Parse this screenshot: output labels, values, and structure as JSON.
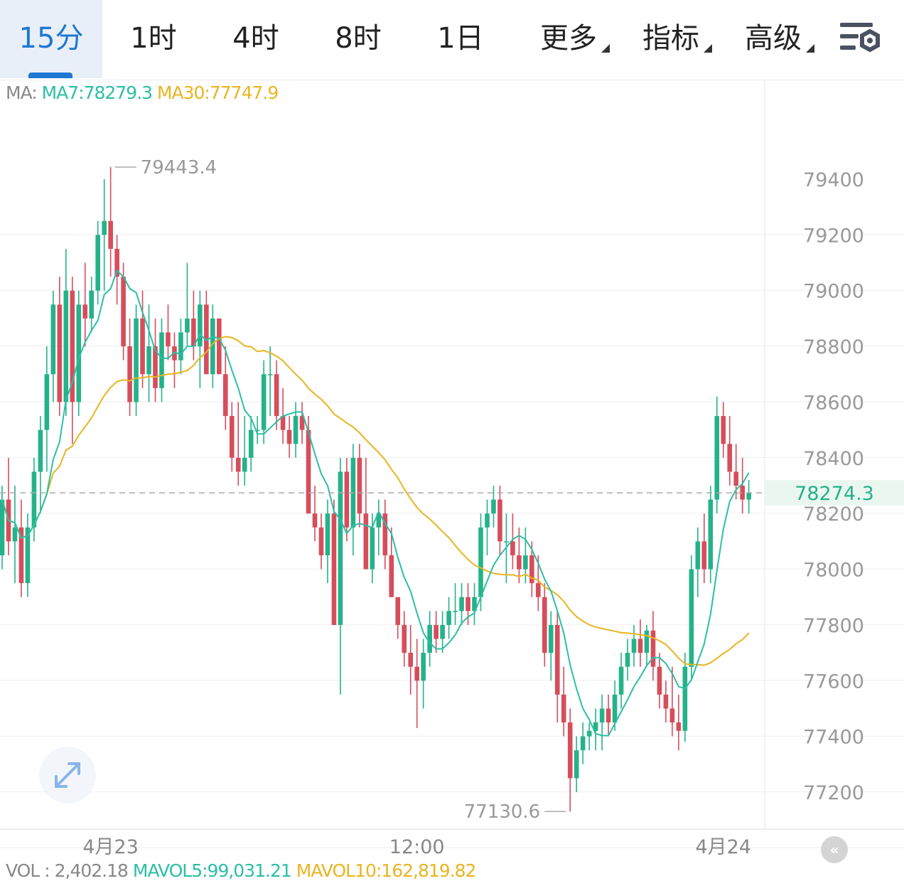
{
  "tabs": [
    {
      "label": "15分",
      "active": true
    },
    {
      "label": "1时"
    },
    {
      "label": "4时"
    },
    {
      "label": "8时"
    },
    {
      "label": "1日"
    },
    {
      "label": "更多",
      "dropdown": true
    },
    {
      "label": "指标",
      "dropdown": true
    },
    {
      "label": "高级",
      "dropdown": true
    }
  ],
  "ma_legend": {
    "prefix": "MA:",
    "ma7": "MA7:78279.3",
    "ma30": "MA30:77747.9"
  },
  "vol_legend": {
    "vol": "VOL : 2,402.18",
    "mavol5": "MAVOL5:99,031.21",
    "mavol10": "MAVOL10:162,819.82"
  },
  "colors": {
    "up": "#25b28a",
    "down": "#d64d5c",
    "ma7": "#2bbfa6",
    "ma30": "#e9b520",
    "accent": "#1e78d2"
  },
  "icons": {
    "settings": "settings-lines-gear-icon",
    "expand": "expand-arrows-icon",
    "scroll": "scroll-to-latest-icon"
  },
  "chart_data": {
    "type": "candlestick",
    "grid": true,
    "ylim": [
      77050,
      79700
    ],
    "y_ticks": [
      79400,
      79200,
      79000,
      78800,
      78600,
      78400,
      78200,
      78000,
      77800,
      77600,
      77400,
      77200
    ],
    "y_tick_labels": [
      "79400",
      "79200",
      "79000",
      "78800",
      "78600",
      "78400",
      "78200",
      "78000",
      "77800",
      "77600",
      "77400",
      "77200"
    ],
    "x_labels": [
      {
        "label": "4月23",
        "index": 17
      },
      {
        "label": "12:00",
        "index": 65
      },
      {
        "label": "4月24",
        "index": 113
      }
    ],
    "high_marker": {
      "label": "79443.4",
      "index": 17,
      "value": 79443.4
    },
    "low_marker": {
      "label": "77130.6",
      "index": 89,
      "value": 77130.6
    },
    "last_price": {
      "label": "78274.3",
      "value": 78274.3
    },
    "ohlc": [
      [
        78050,
        78300,
        78000,
        78250
      ],
      [
        78250,
        78400,
        78050,
        78100
      ],
      [
        78100,
        78300,
        77950,
        78150
      ],
      [
        78150,
        78250,
        77900,
        77950
      ],
      [
        77950,
        78200,
        77900,
        78150
      ],
      [
        78150,
        78400,
        78100,
        78350
      ],
      [
        78350,
        78550,
        78200,
        78500
      ],
      [
        78500,
        78800,
        78350,
        78700
      ],
      [
        78700,
        79000,
        78600,
        78950
      ],
      [
        78950,
        79050,
        78550,
        78600
      ],
      [
        78600,
        79150,
        78550,
        79000
      ],
      [
        79000,
        79050,
        78450,
        78600
      ],
      [
        78600,
        79000,
        78550,
        78950
      ],
      [
        78950,
        79100,
        78800,
        78900
      ],
      [
        78900,
        79050,
        78850,
        79000
      ],
      [
        79000,
        79250,
        78950,
        79200
      ],
      [
        79200,
        79400,
        79000,
        79250
      ],
      [
        79250,
        79443.4,
        79050,
        79150
      ],
      [
        79150,
        79200,
        78950,
        79050
      ],
      [
        79050,
        79100,
        78750,
        78800
      ],
      [
        78800,
        78900,
        78550,
        78600
      ],
      [
        78600,
        78950,
        78550,
        78900
      ],
      [
        78900,
        79000,
        78650,
        78700
      ],
      [
        78700,
        78950,
        78600,
        78800
      ],
      [
        78800,
        78900,
        78600,
        78650
      ],
      [
        78650,
        78900,
        78600,
        78850
      ],
      [
        78850,
        78950,
        78750,
        78800
      ],
      [
        78800,
        78850,
        78650,
        78750
      ],
      [
        78750,
        78900,
        78700,
        78850
      ],
      [
        78850,
        79100,
        78800,
        78900
      ],
      [
        78900,
        79000,
        78750,
        78800
      ],
      [
        78800,
        79000,
        78650,
        78950
      ],
      [
        78950,
        79000,
        78700,
        78700
      ],
      [
        78700,
        78950,
        78650,
        78900
      ],
      [
        78900,
        78900,
        78700,
        78700
      ],
      [
        78700,
        78800,
        78500,
        78550
      ],
      [
        78550,
        78600,
        78350,
        78400
      ],
      [
        78400,
        78600,
        78300,
        78350
      ],
      [
        78350,
        78550,
        78300,
        78400
      ],
      [
        78400,
        78550,
        78350,
        78500
      ],
      [
        78500,
        78550,
        78450,
        78500
      ],
      [
        78500,
        78750,
        78450,
        78700
      ],
      [
        78700,
        78800,
        78550,
        78700
      ],
      [
        78700,
        78750,
        78500,
        78550
      ],
      [
        78550,
        78650,
        78450,
        78500
      ],
      [
        78500,
        78550,
        78400,
        78450
      ],
      [
        78450,
        78600,
        78400,
        78550
      ],
      [
        78550,
        78600,
        78450,
        78500
      ],
      [
        78500,
        78550,
        78200,
        78200
      ],
      [
        78200,
        78300,
        78100,
        78150
      ],
      [
        78150,
        78200,
        78000,
        78050
      ],
      [
        78050,
        78250,
        77950,
        78200
      ],
      [
        78200,
        78250,
        77800,
        77800
      ],
      [
        77800,
        78400,
        77550,
        78350
      ],
      [
        78350,
        78400,
        78100,
        78150
      ],
      [
        78150,
        78450,
        78050,
        78400
      ],
      [
        78400,
        78450,
        78150,
        78200
      ],
      [
        78200,
        78400,
        78000,
        78000
      ],
      [
        78000,
        78200,
        77950,
        78150
      ],
      [
        78150,
        78250,
        78050,
        78200
      ],
      [
        78200,
        78250,
        78000,
        78050
      ],
      [
        78050,
        78150,
        77900,
        77900
      ],
      [
        77900,
        77900,
        77750,
        77800
      ],
      [
        77800,
        77850,
        77650,
        77700
      ],
      [
        77700,
        77800,
        77550,
        77650
      ],
      [
        77650,
        77750,
        77430,
        77600
      ],
      [
        77600,
        77750,
        77500,
        77700
      ],
      [
        77700,
        77850,
        77650,
        77800
      ],
      [
        77800,
        77850,
        77700,
        77750
      ],
      [
        77750,
        77850,
        77700,
        77800
      ],
      [
        77800,
        77900,
        77750,
        77850
      ],
      [
        77850,
        77950,
        77800,
        77850
      ],
      [
        77850,
        77950,
        77800,
        77900
      ],
      [
        77900,
        77950,
        77800,
        77850
      ],
      [
        77850,
        77950,
        77800,
        77900
      ],
      [
        77900,
        78200,
        77850,
        78150
      ],
      [
        78150,
        78250,
        78050,
        78200
      ],
      [
        78200,
        78300,
        78150,
        78250
      ],
      [
        78250,
        78300,
        78050,
        78100
      ],
      [
        78100,
        78200,
        77950,
        78100
      ],
      [
        78100,
        78200,
        78000,
        78050
      ],
      [
        78050,
        78150,
        77950,
        78000
      ],
      [
        78000,
        78150,
        77950,
        78050
      ],
      [
        78050,
        78100,
        77900,
        77950
      ],
      [
        77950,
        78050,
        77850,
        77900
      ],
      [
        77900,
        77950,
        77650,
        77700
      ],
      [
        77700,
        77850,
        77600,
        77800
      ],
      [
        77800,
        77850,
        77450,
        77550
      ],
      [
        77550,
        77650,
        77400,
        77450
      ],
      [
        77450,
        77500,
        77130.6,
        77250
      ],
      [
        77250,
        77400,
        77200,
        77350
      ],
      [
        77350,
        77450,
        77300,
        77400
      ],
      [
        77400,
        77450,
        77350,
        77420
      ],
      [
        77420,
        77500,
        77350,
        77450
      ],
      [
        77450,
        77550,
        77350,
        77500
      ],
      [
        77500,
        77550,
        77400,
        77450
      ],
      [
        77450,
        77600,
        77420,
        77550
      ],
      [
        77550,
        77700,
        77500,
        77650
      ],
      [
        77650,
        77750,
        77600,
        77700
      ],
      [
        77700,
        77800,
        77650,
        77750
      ],
      [
        77750,
        77820,
        77650,
        77700
      ],
      [
        77700,
        77800,
        77650,
        77780
      ],
      [
        77780,
        77850,
        77600,
        77650
      ],
      [
        77650,
        77700,
        77500,
        77550
      ],
      [
        77550,
        77600,
        77450,
        77500
      ],
      [
        77500,
        77650,
        77400,
        77450
      ],
      [
        77450,
        77550,
        77350,
        77420
      ],
      [
        77420,
        77700,
        77380,
        77650
      ],
      [
        77650,
        78050,
        77600,
        78000
      ],
      [
        78000,
        78150,
        77900,
        78100
      ],
      [
        78100,
        78200,
        77950,
        78000
      ],
      [
        78000,
        78300,
        77950,
        78250
      ],
      [
        78250,
        78620,
        78200,
        78550
      ],
      [
        78550,
        78600,
        78400,
        78450
      ],
      [
        78450,
        78550,
        78300,
        78350
      ],
      [
        78350,
        78450,
        78250,
        78300
      ],
      [
        78300,
        78400,
        78200,
        78250
      ],
      [
        78250,
        78320,
        78200,
        78274.3
      ]
    ]
  }
}
